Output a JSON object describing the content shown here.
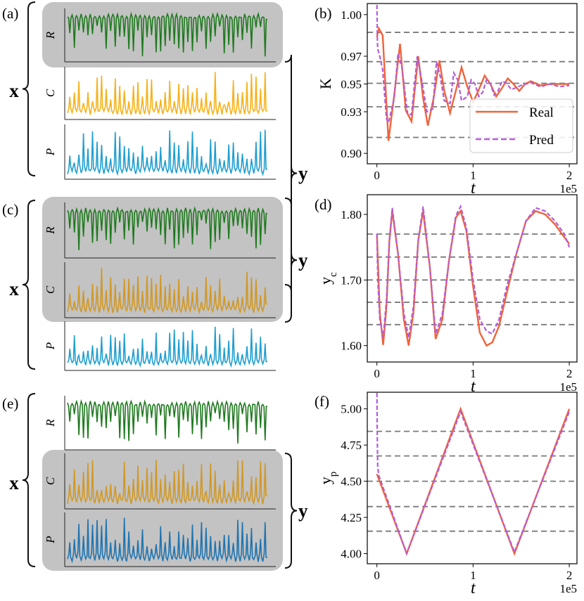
{
  "colors": {
    "R": "#1e7a1e",
    "C_plain": "#f5b21a",
    "C_shaded": "#d19824",
    "P_plain": "#1f9fd0",
    "P_shaded": "#1f74b0",
    "shade": "#c3c3c3",
    "real": "#f0633c",
    "pred": "#b35ed6",
    "ref": "#7a7a7a"
  },
  "left_panels": [
    {
      "label": "(a)",
      "x_label": "x",
      "y_label": "y",
      "series_labels": [
        "R",
        "C",
        "P"
      ],
      "shaded": [
        "R"
      ]
    },
    {
      "label": "(c)",
      "x_label": "x",
      "y_label": "y",
      "series_labels": [
        "R",
        "C",
        "P"
      ],
      "shaded": [
        "R",
        "C"
      ]
    },
    {
      "label": "(e)",
      "x_label": "x",
      "y_label": "y",
      "series_labels": [
        "R",
        "C",
        "P"
      ],
      "shaded": [
        "C",
        "P"
      ]
    }
  ],
  "chart_data": [
    {
      "panel": "(b)",
      "type": "line",
      "ylabel": "K",
      "xlabel": "t",
      "x_scale_note": "1e5",
      "xlim": [
        -0.1,
        2.08
      ],
      "ylim": [
        0.8925,
        1.008
      ],
      "xticks": [
        0,
        1,
        2
      ],
      "yticks": [
        0.9,
        0.93,
        0.95,
        0.97,
        1.0
      ],
      "ytick_labels": [
        "0.90",
        "0.93",
        "0.95",
        "0.97",
        "1.00"
      ],
      "reference_lines": [
        0.9115,
        0.9336,
        0.9505,
        0.9661,
        0.9872
      ],
      "legend": {
        "placement": "lower-right",
        "entries": [
          "Real",
          "Pred"
        ]
      },
      "series": [
        {
          "name": "Real",
          "style": "solid",
          "x": [
            0,
            0.02,
            0.06,
            0.12,
            0.18,
            0.24,
            0.3,
            0.36,
            0.43,
            0.48,
            0.53,
            0.59,
            0.65,
            0.7,
            0.76,
            0.82,
            0.88,
            0.94,
            1.0,
            1.06,
            1.12,
            1.18,
            1.24,
            1.3,
            1.36,
            1.42,
            1.48,
            1.54,
            1.6,
            1.7,
            1.8,
            2.0
          ],
          "y": [
            0.984,
            0.99,
            0.985,
            0.909,
            0.942,
            0.979,
            0.931,
            0.923,
            0.97,
            0.94,
            0.92,
            0.94,
            0.967,
            0.945,
            0.929,
            0.945,
            0.962,
            0.948,
            0.937,
            0.946,
            0.956,
            0.95,
            0.941,
            0.947,
            0.954,
            0.95,
            0.945,
            0.95,
            0.952,
            0.949,
            0.95,
            0.95
          ]
        },
        {
          "name": "Pred",
          "style": "dashed",
          "x": [
            0,
            0.005,
            0.01,
            0.03,
            0.06,
            0.1,
            0.12,
            0.18,
            0.22,
            0.26,
            0.32,
            0.36,
            0.42,
            0.46,
            0.52,
            0.58,
            0.62,
            0.66,
            0.7,
            0.76,
            0.8,
            0.84,
            0.88,
            0.94,
            0.98,
            1.02,
            1.06,
            1.1,
            1.14,
            1.18,
            1.22,
            1.26,
            1.3,
            1.34,
            1.4,
            1.5,
            1.6,
            1.7,
            1.8,
            1.9,
            2.0
          ],
          "y": [
            1.007,
            0.98,
            0.975,
            0.97,
            0.96,
            0.925,
            0.922,
            0.94,
            0.972,
            0.962,
            0.928,
            0.928,
            0.97,
            0.955,
            0.93,
            0.932,
            0.966,
            0.955,
            0.938,
            0.936,
            0.958,
            0.953,
            0.938,
            0.941,
            0.953,
            0.95,
            0.941,
            0.944,
            0.953,
            0.95,
            0.942,
            0.945,
            0.952,
            0.951,
            0.946,
            0.949,
            0.951,
            0.948,
            0.95,
            0.948,
            0.949
          ]
        }
      ]
    },
    {
      "panel": "(d)",
      "type": "line",
      "ylabel": "y_c",
      "xlabel": "t",
      "x_scale_note": "1e5",
      "xlim": [
        -0.1,
        2.08
      ],
      "ylim": [
        1.575,
        1.83
      ],
      "xticks": [
        0,
        1,
        2
      ],
      "yticks": [
        1.6,
        1.7,
        1.8
      ],
      "ytick_labels": [
        "1.60",
        "1.70",
        "1.80"
      ],
      "reference_lines": [
        1.632,
        1.666,
        1.7,
        1.735,
        1.77
      ],
      "series": [
        {
          "name": "Real",
          "style": "solid",
          "x": [
            0,
            0.03,
            0.065,
            0.1,
            0.13,
            0.16,
            0.22,
            0.28,
            0.33,
            0.38,
            0.43,
            0.48,
            0.55,
            0.61,
            0.68,
            0.75,
            0.82,
            0.87,
            0.93,
            1.0,
            1.07,
            1.14,
            1.2,
            1.27,
            1.35,
            1.45,
            1.55,
            1.65,
            1.75,
            1.85,
            1.95,
            2.0
          ],
          "y": [
            1.77,
            1.65,
            1.601,
            1.66,
            1.76,
            1.805,
            1.74,
            1.64,
            1.6,
            1.65,
            1.76,
            1.805,
            1.72,
            1.61,
            1.64,
            1.73,
            1.795,
            1.805,
            1.775,
            1.69,
            1.62,
            1.6,
            1.605,
            1.63,
            1.68,
            1.74,
            1.79,
            1.805,
            1.8,
            1.785,
            1.765,
            1.755
          ]
        },
        {
          "name": "Pred",
          "style": "dashed",
          "x": [
            0,
            0.01,
            0.03,
            0.065,
            0.1,
            0.13,
            0.16,
            0.22,
            0.28,
            0.33,
            0.38,
            0.43,
            0.48,
            0.55,
            0.61,
            0.68,
            0.75,
            0.82,
            0.87,
            0.93,
            1.0,
            1.07,
            1.14,
            1.2,
            1.27,
            1.35,
            1.45,
            1.55,
            1.65,
            1.75,
            1.85,
            1.95,
            2.0
          ],
          "y": [
            1.77,
            1.7,
            1.64,
            1.612,
            1.67,
            1.76,
            1.81,
            1.74,
            1.65,
            1.612,
            1.66,
            1.76,
            1.812,
            1.72,
            1.618,
            1.648,
            1.73,
            1.798,
            1.812,
            1.78,
            1.7,
            1.64,
            1.622,
            1.618,
            1.64,
            1.69,
            1.74,
            1.79,
            1.81,
            1.805,
            1.79,
            1.77,
            1.75
          ]
        }
      ]
    },
    {
      "panel": "(f)",
      "type": "line",
      "ylabel": "y_p",
      "xlabel": "t",
      "x_scale_note": "1e5",
      "xlim": [
        -0.1,
        2.08
      ],
      "ylim": [
        3.93,
        5.115
      ],
      "xticks": [
        0,
        1,
        2
      ],
      "yticks": [
        4.0,
        4.25,
        4.5,
        4.75,
        5.0
      ],
      "ytick_labels": [
        "4.00",
        "4.25",
        "4.50",
        "4.75",
        "5.00"
      ],
      "reference_lines": [
        4.155,
        4.325,
        4.5,
        4.675,
        4.845
      ],
      "series": [
        {
          "name": "Real",
          "style": "solid",
          "x": [
            0,
            0.31,
            0.87,
            1.43,
            2.0
          ],
          "y": [
            4.55,
            4.0,
            5.0,
            4.0,
            5.0
          ]
        },
        {
          "name": "Pred",
          "style": "dashed",
          "x": [
            0,
            0.003,
            0.008,
            0.02,
            0.31,
            0.87,
            1.43,
            2.0
          ],
          "y": [
            5.11,
            4.85,
            4.6,
            4.54,
            4.0,
            4.98,
            4.01,
            4.98
          ]
        }
      ]
    }
  ]
}
